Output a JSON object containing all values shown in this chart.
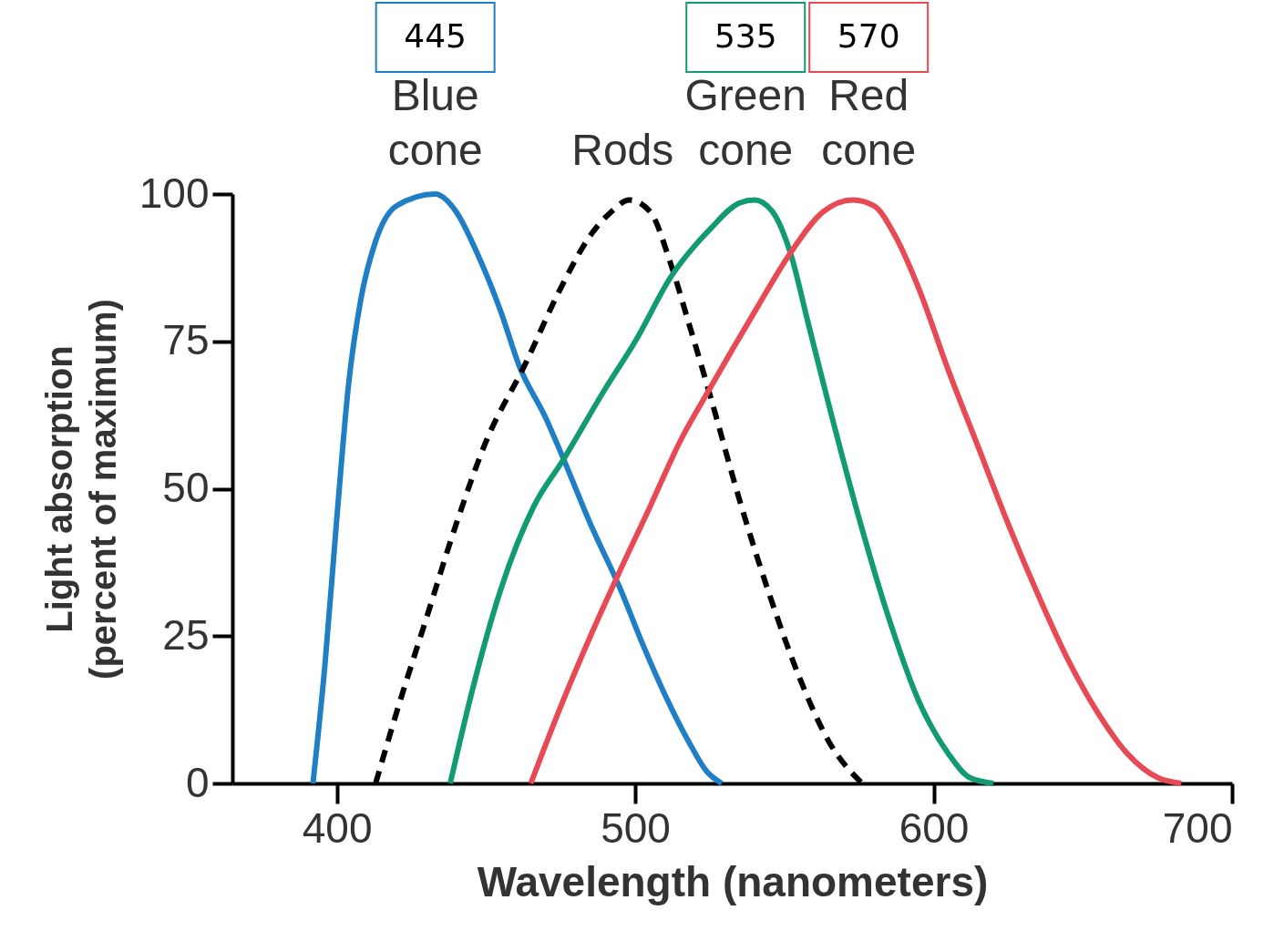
{
  "chart_data": {
    "type": "line",
    "xlabel": "Wavelength (nanometers)",
    "ylabel": "Light absorption\n(percent of maximum)",
    "xlim": [
      365,
      700
    ],
    "xticks": [
      400,
      500,
      600,
      700
    ],
    "ylim": [
      0,
      100
    ],
    "yticks": [
      0,
      25,
      50,
      75,
      100
    ],
    "grid": false,
    "legend": "top",
    "marker": "none",
    "line_style": "solid",
    "series": [
      {
        "name": "Blue cone",
        "color": "#1f7ec4",
        "x": [
          392,
          396,
          400,
          404,
          408,
          413,
          420,
          433,
          440,
          447,
          455,
          461,
          470,
          476,
          485,
          495,
          503,
          510,
          518,
          524,
          529
        ],
        "values": [
          0,
          20,
          45,
          68,
          82,
          92,
          98,
          100,
          97,
          90,
          80,
          71,
          62,
          55,
          44,
          33,
          23,
          15,
          7,
          2,
          0
        ]
      },
      {
        "name": "Rods",
        "color": "#000000",
        "line_style": "dashed",
        "x": [
          413,
          420,
          430,
          440,
          450,
          463,
          475,
          485,
          492,
          498,
          505,
          512,
          518,
          525,
          535,
          545,
          555,
          565,
          576
        ],
        "values": [
          0,
          12,
          28,
          44,
          58,
          71,
          84,
          93,
          97,
          99,
          97,
          88,
          78,
          66,
          48,
          32,
          18,
          7,
          0
        ]
      },
      {
        "name": "Green cone",
        "color": "#129a72",
        "x": [
          438,
          445,
          455,
          466,
          476,
          490,
          500,
          512,
          525,
          535,
          540,
          546,
          552,
          558,
          565,
          575,
          585,
          595,
          605,
          612,
          620
        ],
        "values": [
          0,
          15,
          33,
          47,
          55,
          67,
          75,
          86,
          94,
          98.5,
          99,
          97,
          90,
          78,
          64,
          45,
          28,
          14,
          5,
          1,
          0
        ]
      },
      {
        "name": "Red cone",
        "color": "#e84a55",
        "x": [
          465,
          475,
          485,
          493,
          505,
          515,
          525,
          540,
          552,
          563,
          573,
          580,
          587,
          595,
          605,
          615,
          625,
          635,
          645,
          655,
          665,
          675,
          683
        ],
        "values": [
          0,
          13,
          25,
          34,
          47,
          58,
          67,
          80,
          90,
          97,
          99,
          98,
          93,
          84,
          70,
          57,
          44,
          32,
          21,
          12,
          5,
          1,
          0
        ]
      }
    ],
    "annotations": [
      "445",
      "535",
      "570"
    ]
  }
}
